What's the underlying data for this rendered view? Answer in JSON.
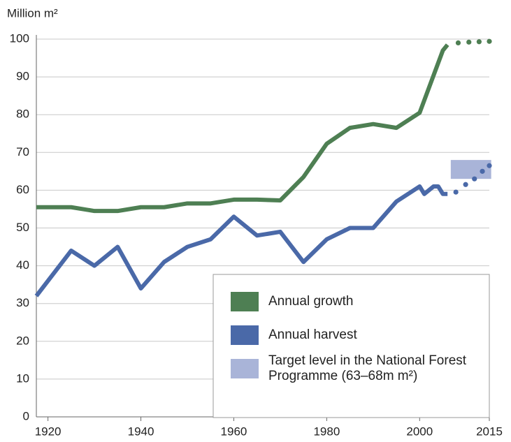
{
  "chart_data": {
    "type": "line",
    "y_label": "Million m²",
    "xlim": [
      1917.5,
      2015
    ],
    "ylim": [
      0,
      100
    ],
    "xticks": [
      1920,
      1940,
      1960,
      1980,
      2000,
      2015
    ],
    "yticks": [
      0,
      10,
      20,
      30,
      40,
      50,
      60,
      70,
      80,
      90,
      100
    ],
    "grid": true,
    "series": [
      {
        "name": "Annual growth",
        "color": "#4e7f53",
        "x": [
          1917.5,
          1925,
          1930,
          1935,
          1940,
          1945,
          1950,
          1955,
          1960,
          1965,
          1970,
          1975,
          1980,
          1985,
          1990,
          1995,
          2000,
          2005,
          2006
        ],
        "values": [
          55.5,
          55.5,
          54.5,
          54.5,
          55.5,
          55.5,
          56.5,
          56.5,
          57.5,
          57.5,
          57.3,
          63.5,
          72.3,
          76.5,
          77.5,
          76.5,
          80.5,
          97,
          98.5
        ]
      },
      {
        "name": "Annual harvest",
        "color": "#4a69a8",
        "x": [
          1917.5,
          1925,
          1930,
          1935,
          1940,
          1945,
          1950,
          1955,
          1960,
          1965,
          1970,
          1975,
          1980,
          1985,
          1990,
          1995,
          2000,
          2001,
          2003,
          2004,
          2005,
          2006
        ],
        "values": [
          32,
          44,
          40,
          45,
          34,
          41,
          45,
          47,
          53,
          48,
          49,
          41,
          47,
          50,
          50,
          57,
          61,
          59,
          61,
          61,
          59,
          59
        ]
      },
      {
        "color": "#4e7f53",
        "style": "dotted",
        "x": [
          2008.3,
          2010.6,
          2012.8,
          2015
        ],
        "values": [
          99,
          99.2,
          99.3,
          99.4
        ]
      },
      {
        "color": "#4a69a8",
        "style": "dotted",
        "x": [
          2007.8,
          2009.9,
          2011.8,
          2013.5,
          2015
        ],
        "values": [
          59.5,
          61.5,
          63,
          65,
          66.5
        ]
      }
    ],
    "target": {
      "name": "Target level in the National Forest Programme (63–68m m²)",
      "color": "#a9b4d8",
      "x": [
        2006.7,
        2015.4
      ],
      "values": [
        63,
        68
      ]
    }
  }
}
